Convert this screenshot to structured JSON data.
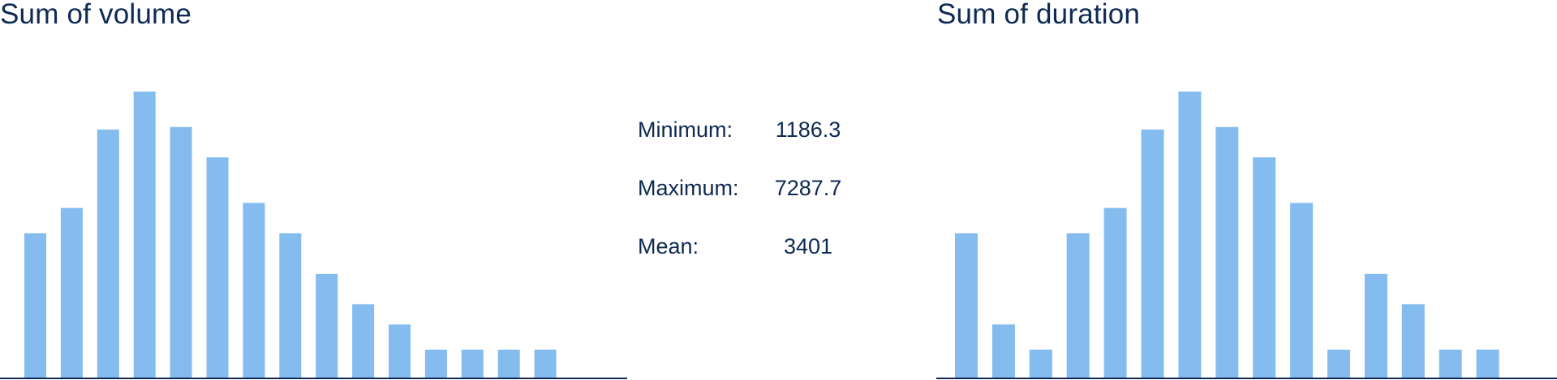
{
  "colors": {
    "bar": "#84bcf0",
    "axis": "#0f2a52",
    "text": "#0f2a52"
  },
  "chart_data": [
    {
      "type": "bar",
      "title": "Sum of volume",
      "values": [
        5.7,
        6.7,
        9.8,
        11.3,
        9.9,
        8.7,
        6.9,
        5.7,
        4.1,
        2.9,
        2.1,
        1.1,
        1.1,
        1.1,
        1.1
      ],
      "ylim": [
        0,
        11.3
      ],
      "xlabel": "",
      "ylabel": "",
      "grid": false,
      "legend": "none"
    },
    {
      "type": "bar",
      "title": "Sum of duration",
      "values": [
        5.7,
        2.1,
        1.1,
        5.7,
        6.7,
        9.8,
        11.3,
        9.9,
        8.7,
        6.9,
        1.1,
        4.1,
        2.9,
        1.1,
        1.1
      ],
      "ylim": [
        0,
        11.3
      ],
      "xlabel": "",
      "ylabel": "",
      "grid": false,
      "legend": "none"
    }
  ],
  "stats": {
    "minimum": {
      "label": "Minimum:",
      "value": "1186.3"
    },
    "maximum": {
      "label": "Maximum:",
      "value": "7287.7"
    },
    "mean": {
      "label": "Mean:",
      "value": "3401"
    }
  }
}
